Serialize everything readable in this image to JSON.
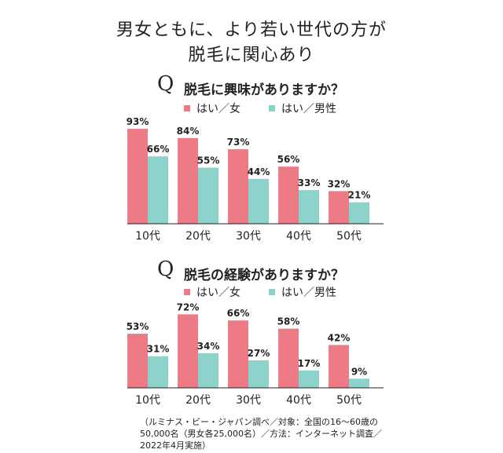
{
  "headline": {
    "line1": "男女ともに、より若い世代の方が",
    "line2": "脱毛に関心あり"
  },
  "colors": {
    "female": "#ec7b86",
    "male": "#8ed2cc"
  },
  "chart_data": [
    {
      "type": "bar",
      "q_mark": "Q",
      "title": "脱毛に興味がありますか？",
      "categories": [
        "10代",
        "20代",
        "30代",
        "40代",
        "50代"
      ],
      "series": [
        {
          "name": "はい／女",
          "values": [
            93,
            84,
            73,
            56,
            32
          ]
        },
        {
          "name": "はい／男性",
          "values": [
            66,
            55,
            44,
            33,
            21
          ]
        }
      ],
      "value_suffix": "%",
      "ylim": [
        0,
        100
      ],
      "legend": "top-left"
    },
    {
      "type": "bar",
      "q_mark": "Q",
      "title": "脱毛の経験がありますか？",
      "categories": [
        "10代",
        "20代",
        "30代",
        "40代",
        "50代"
      ],
      "series": [
        {
          "name": "はい／女",
          "values": [
            53,
            72,
            66,
            58,
            42
          ]
        },
        {
          "name": "はい／男性",
          "values": [
            31,
            34,
            27,
            17,
            9
          ]
        }
      ],
      "value_suffix": "%",
      "ylim": [
        0,
        100
      ],
      "legend": "top-left"
    }
  ],
  "footnote": "（ルミナス・ビー・ジャパン調べ／対象：全国の16〜60歳の50,000名（男女各25,000名）／方法：インターネット調査／2022年4月実施）"
}
